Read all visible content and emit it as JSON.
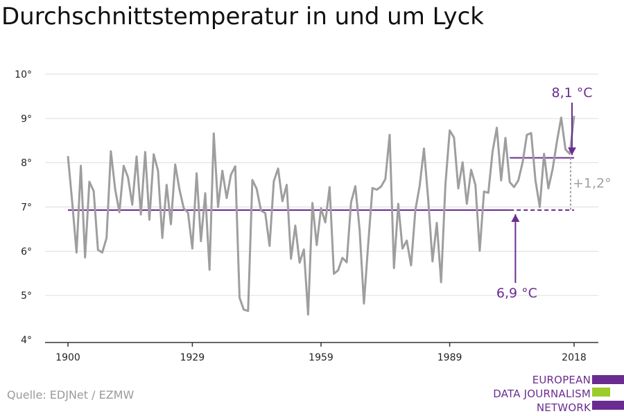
{
  "title": "Durchschnittstemperatur in und um Lyck",
  "source": "Quelle: EDJNet / EZMW",
  "logo": {
    "lines": [
      "EUROPEAN",
      "DATA JOURNALISM",
      "NETWORK"
    ],
    "colors": [
      "#6a2c91",
      "#9ccc2c",
      "#6a2c91"
    ]
  },
  "colors": {
    "series": "#9e9e9e",
    "accent": "#6a2c91",
    "grid": "#dddddd",
    "diff": "#a0a0a0"
  },
  "chart_data": {
    "type": "line",
    "title": "Durchschnittstemperatur in und um Lyck",
    "xlabel": "",
    "ylabel": "",
    "xlim": [
      1900,
      2018
    ],
    "ylim": [
      4,
      10
    ],
    "grid": true,
    "x_ticks": [
      1900,
      1929,
      1959,
      1989,
      2018
    ],
    "x_tick_labels": [
      "1900",
      "1929",
      "1959",
      "1989",
      "2018"
    ],
    "y_ticks": [
      4,
      5,
      6,
      7,
      8,
      9,
      10
    ],
    "y_tick_labels": [
      "4°",
      "5°",
      "6°",
      "7°",
      "8°",
      "9°",
      "10°"
    ],
    "series": [
      {
        "x": [
          1900,
          1901,
          1902,
          1903,
          1904,
          1905,
          1906,
          1907,
          1908,
          1909,
          1910,
          1911,
          1912,
          1913,
          1914,
          1915,
          1916,
          1917,
          1918,
          1919,
          1920,
          1921,
          1922,
          1923,
          1924,
          1925,
          1926,
          1927,
          1928,
          1929,
          1930,
          1931,
          1932,
          1933,
          1934,
          1935,
          1936,
          1937,
          1938,
          1939,
          1940,
          1941,
          1942,
          1943,
          1944,
          1945,
          1946,
          1947,
          1948,
          1949,
          1950,
          1951,
          1952,
          1953,
          1954,
          1955,
          1956,
          1957,
          1958,
          1959,
          1960,
          1961,
          1962,
          1963,
          1964,
          1965,
          1966,
          1967,
          1968,
          1969,
          1970,
          1971,
          1972,
          1973,
          1974,
          1975,
          1976,
          1977,
          1978,
          1979,
          1980,
          1981,
          1982,
          1983,
          1984,
          1985,
          1986,
          1987,
          1988,
          1989,
          1990,
          1991,
          1992,
          1993,
          1994,
          1995,
          1996,
          1997,
          1998,
          1999,
          2000,
          2001,
          2002,
          2003,
          2004,
          2005,
          2006,
          2007,
          2008,
          2009,
          2010,
          2011,
          2012,
          2013,
          2014,
          2015,
          2016,
          2017,
          2018
        ],
        "values": [
          8.15,
          7.1,
          5.97,
          7.93,
          5.86,
          7.57,
          7.36,
          6.03,
          5.97,
          6.3,
          8.26,
          7.4,
          6.88,
          7.93,
          7.67,
          7.05,
          8.14,
          6.83,
          8.24,
          6.71,
          8.19,
          7.82,
          6.3,
          7.5,
          6.61,
          7.96,
          7.4,
          6.97,
          6.87,
          6.06,
          7.76,
          6.23,
          7.31,
          5.58,
          8.66,
          7.0,
          7.82,
          7.2,
          7.73,
          7.92,
          4.95,
          4.68,
          4.65,
          7.61,
          7.41,
          6.92,
          6.86,
          6.12,
          7.58,
          7.87,
          7.13,
          7.5,
          5.83,
          6.58,
          5.74,
          6.04,
          4.57,
          7.09,
          6.14,
          6.97,
          6.65,
          7.45,
          5.49,
          5.57,
          5.85,
          5.75,
          7.1,
          7.47,
          6.48,
          4.82,
          6.17,
          7.43,
          7.39,
          7.46,
          7.63,
          8.63,
          5.62,
          7.07,
          6.06,
          6.24,
          5.68,
          6.93,
          7.48,
          8.32,
          7.15,
          5.77,
          6.64,
          5.3,
          7.5,
          8.73,
          8.57,
          7.42,
          8.01,
          7.07,
          7.84,
          7.5,
          6.01,
          7.35,
          7.32,
          8.26,
          8.79,
          7.6,
          8.56,
          7.56,
          7.45,
          7.6,
          8.01,
          8.63,
          8.67,
          7.6,
          7.0,
          8.2,
          7.42,
          7.86,
          8.48,
          9.02,
          8.3,
          8.2,
          9.06
        ]
      }
    ],
    "reference_lines": [
      {
        "label": "6,9 °C",
        "value": 6.93,
        "x_start": 1900,
        "x_end": 2018,
        "solid_until": 2003
      },
      {
        "label": "8,1 °C",
        "value": 8.11,
        "x_start": 2003,
        "x_end": 2018
      }
    ],
    "difference_label": "+1,2°"
  }
}
